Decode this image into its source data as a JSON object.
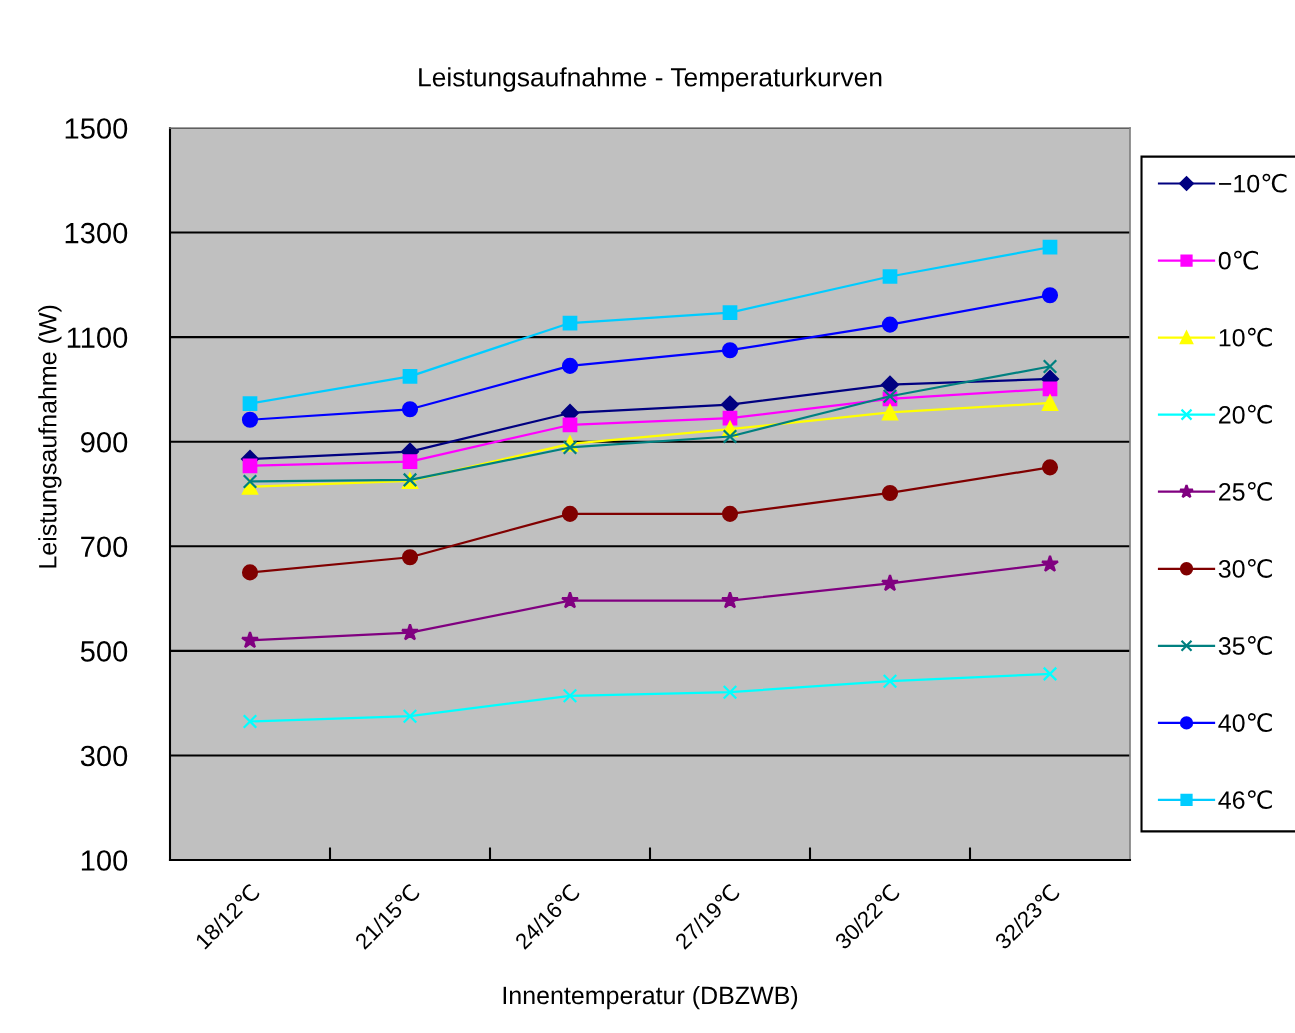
{
  "chart_data": {
    "type": "line",
    "title": "Leistungsaufnahme - Temperaturkurven",
    "xlabel": "Innentemperatur (DBZWB)",
    "ylabel": "Leistungsaufnahme (W)",
    "categories": [
      "18/12℃",
      "21/15℃",
      "24/16℃",
      "27/19℃",
      "30/22℃",
      "32/23℃"
    ],
    "ylim": [
      100,
      1500
    ],
    "yticks": [
      100,
      300,
      500,
      700,
      900,
      1100,
      1300,
      1500
    ],
    "grid": "y",
    "legend": "right",
    "line_style": "solid",
    "series": [
      {
        "name": "−10℃",
        "color": "#000080",
        "marker": "diamond",
        "values": [
          867,
          881,
          955,
          971,
          1009,
          1020
        ]
      },
      {
        "name": "0℃",
        "color": "#ff00ff",
        "marker": "square",
        "values": [
          854,
          862,
          932,
          945,
          982,
          1001
        ]
      },
      {
        "name": "10℃",
        "color": "#ffff00",
        "marker": "triangle",
        "values": [
          814,
          825,
          896,
          924,
          956,
          974
        ]
      },
      {
        "name": "20℃",
        "color": "#00ffff",
        "marker": "cross",
        "values": [
          365,
          375,
          414,
          421,
          442,
          456
        ]
      },
      {
        "name": "25℃",
        "color": "#800080",
        "marker": "star",
        "values": [
          520,
          535,
          596,
          596,
          629,
          666
        ]
      },
      {
        "name": "30℃",
        "color": "#800000",
        "marker": "circle",
        "values": [
          650,
          679,
          762,
          762,
          802,
          851
        ]
      },
      {
        "name": "35℃",
        "color": "#008080",
        "marker": "cross",
        "values": [
          824,
          827,
          889,
          910,
          987,
          1044
        ]
      },
      {
        "name": "40℃",
        "color": "#0000ff",
        "marker": "circle",
        "values": [
          942,
          962,
          1045,
          1075,
          1124,
          1180
        ]
      },
      {
        "name": "46℃",
        "color": "#00ccff",
        "marker": "square",
        "values": [
          973,
          1025,
          1127,
          1147,
          1216,
          1272
        ]
      }
    ]
  }
}
